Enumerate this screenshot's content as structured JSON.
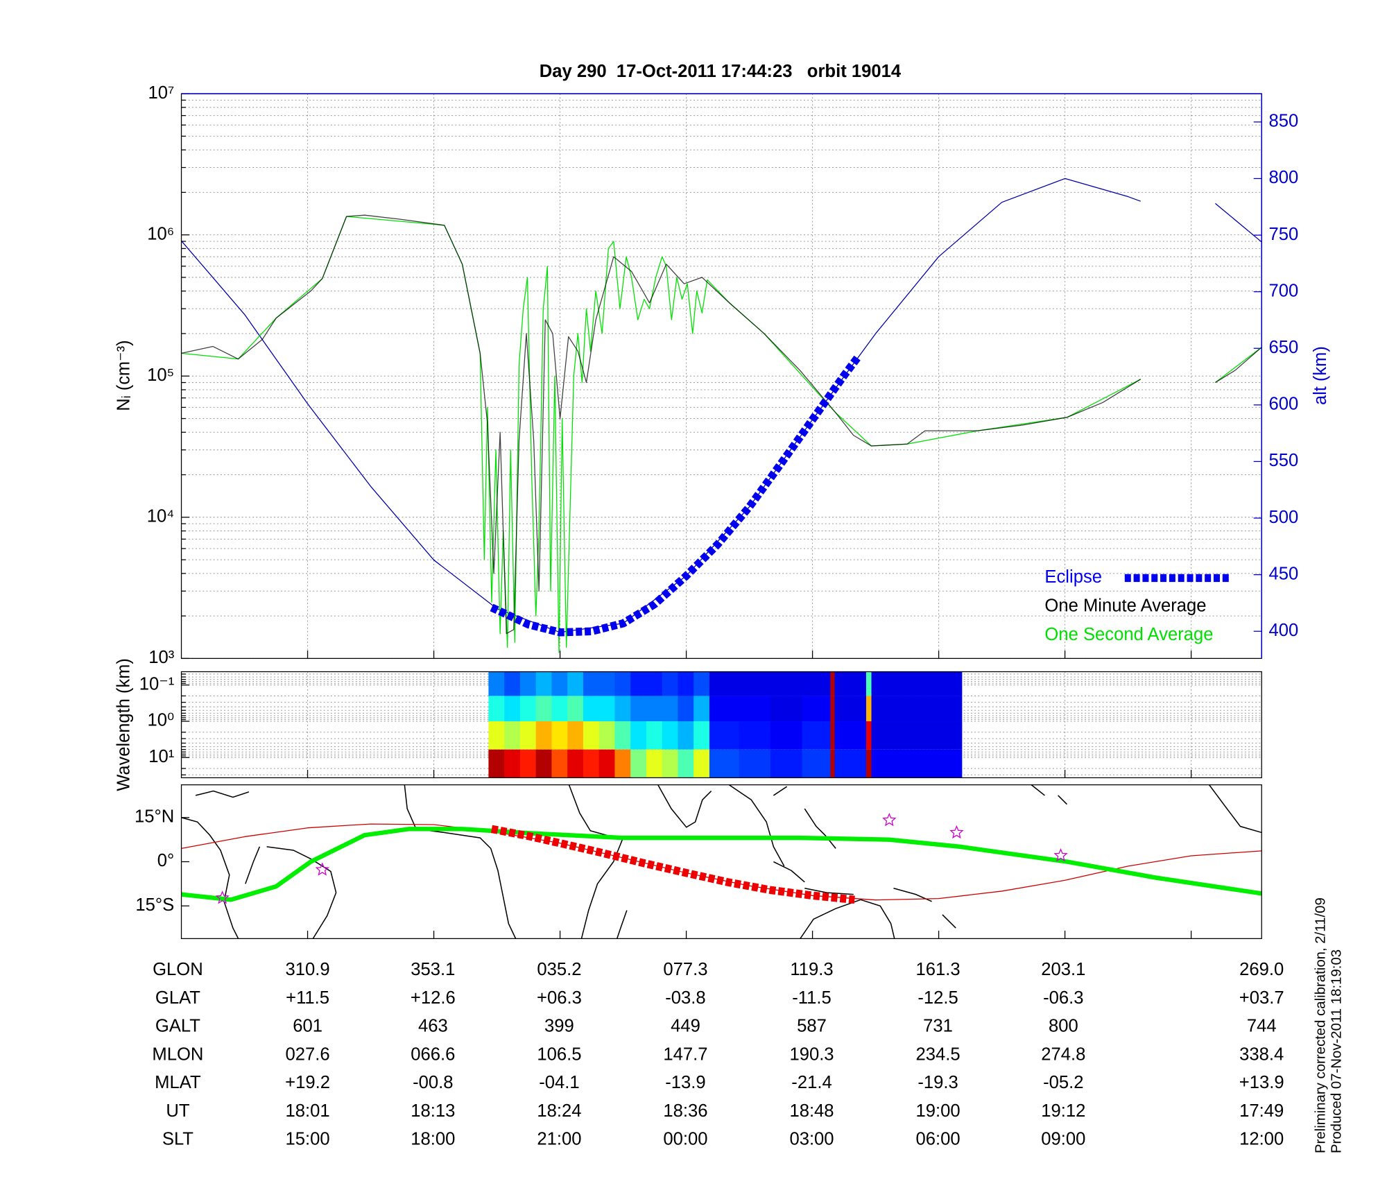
{
  "chart_data": [
    {
      "type": "line",
      "title": "Day 290  17-Oct-2011 17:44:23   orbit 19014",
      "ylabel": "Nᵢ (cm⁻³)",
      "y2label": "alt (km)",
      "xlim": [
        0,
        102.7
      ],
      "xticks": [
        12,
        24,
        36,
        48,
        60,
        72,
        84,
        96
      ],
      "ylim": [
        1000,
        10000000
      ],
      "log_y": true,
      "minor_grid": true,
      "grid": true,
      "yticks": [
        {
          "value": 1000,
          "label": "10³"
        },
        {
          "value": 10000,
          "label": "10⁴"
        },
        {
          "value": 100000,
          "label": "10⁵"
        },
        {
          "value": 1000000,
          "label": "10⁶"
        },
        {
          "value": 10000000,
          "label": "10⁷"
        }
      ],
      "y2lim": [
        376,
        875
      ],
      "y2ticks": [
        400,
        450,
        500,
        550,
        600,
        650,
        700,
        750,
        800,
        850
      ],
      "y2color": "#0000cc",
      "legend": "lower right",
      "series": [
        {
          "axis": "y2",
          "color": "#0000aa",
          "style": "solid",
          "x": [
            0,
            6,
            12,
            18,
            24,
            30,
            36,
            42,
            48,
            54,
            60,
            66,
            72,
            78,
            84,
            90,
            91.2,
            94.7,
            98.3,
            102.7
          ],
          "values": [
            745,
            680,
            601,
            528,
            463,
            420,
            399,
            407,
            449,
            510,
            587,
            663,
            731,
            779,
            800,
            784,
            780,
            null,
            778,
            744
          ]
        },
        {
          "name": "One Second Average",
          "color": "#00e000",
          "style": "solid",
          "x": [
            0,
            5.4,
            9,
            13.4,
            15.7,
            25,
            26.7,
            28.4,
            28.8,
            29.1,
            29.5,
            29.9,
            30.3,
            30.6,
            31,
            31.3,
            31.7,
            32.1,
            32.5,
            32.9,
            33.3,
            33.7,
            34,
            34.4,
            34.8,
            35.1,
            35.5,
            35.9,
            36.2,
            36.6,
            37,
            37.3,
            37.7,
            38.1,
            38.5,
            38.9,
            39.4,
            40,
            40.6,
            41.1,
            41.7,
            42.3,
            42.8,
            43.4,
            44,
            44.5,
            45.1,
            45.7,
            46.1,
            46.6,
            47.1,
            47.6,
            48.1,
            48.6,
            49,
            49.5,
            50,
            52.1,
            55.4,
            62.2,
            65.6,
            69,
            75.7,
            84.2,
            91.2,
            94.7,
            98.3,
            102.7
          ],
          "values": [
            145000,
            132000,
            257000,
            490000,
            1350000,
            1170000,
            620000,
            145000,
            5000,
            60000,
            2500,
            30000,
            1500,
            8000,
            1200,
            30000,
            1300,
            120000,
            300000,
            500000,
            20000,
            2000,
            8000,
            300000,
            600000,
            3000,
            100000,
            1100,
            50000,
            1200,
            15000,
            100000,
            200000,
            90000,
            300000,
            150000,
            400000,
            200000,
            800000,
            900000,
            300000,
            700000,
            500000,
            250000,
            350000,
            300000,
            500000,
            700000,
            600000,
            250000,
            500000,
            350000,
            450000,
            200000,
            400000,
            280000,
            480000,
            330000,
            200000,
            55000,
            32000,
            33000,
            41000,
            51000,
            95000,
            null,
            90000,
            160000
          ]
        },
        {
          "name": "One Minute Average",
          "color": "#000000",
          "style": "solid",
          "x": [
            0,
            3,
            5.4,
            7.7,
            9,
            12.3,
            13.4,
            15.7,
            17.4,
            20.8,
            25,
            26.7,
            28.4,
            29.1,
            29.7,
            30.3,
            30.9,
            31.6,
            32.1,
            32.8,
            33.5,
            34,
            34.6,
            35.3,
            36,
            36.8,
            37.7,
            38.5,
            39.4,
            41.1,
            42.8,
            44.5,
            46.1,
            47.8,
            49.5,
            52.1,
            55.4,
            58.8,
            62.2,
            63.9,
            65.6,
            69,
            70.7,
            75.7,
            80,
            84.2,
            87.6,
            91.2,
            94.7,
            98.3,
            100.2,
            102.7
          ],
          "values": [
            145000,
            162000,
            132000,
            182000,
            257000,
            400000,
            490000,
            1350000,
            1380000,
            1290000,
            1170000,
            620000,
            145000,
            46000,
            4000,
            40000,
            1500,
            1600,
            35000,
            200000,
            35000,
            3000,
            250000,
            200000,
            50000,
            190000,
            150000,
            90000,
            250000,
            700000,
            550000,
            330000,
            620000,
            450000,
            500000,
            330000,
            200000,
            110000,
            55000,
            38000,
            32000,
            33000,
            41000,
            41000,
            45000,
            51000,
            65000,
            95000,
            null,
            90000,
            110000,
            160000
          ]
        },
        {
          "name": "Eclipse",
          "axis": "y2",
          "color": "#0000ee",
          "style": "dashed",
          "x": [
            29.5,
            33,
            36,
            39,
            42,
            45,
            48,
            51,
            54,
            57,
            60,
            63,
            64.3
          ],
          "values": [
            421,
            406,
            399,
            400,
            407,
            424,
            449,
            477,
            510,
            548,
            587,
            626,
            642
          ]
        }
      ]
    },
    {
      "type": "heatmap",
      "ylabel": "Wavelength (km)",
      "colormap": "jet",
      "zlim": [
        0,
        1
      ],
      "xlim": [
        0,
        102.7
      ],
      "xticks": [
        12,
        24,
        36,
        48,
        60,
        72,
        84,
        96
      ],
      "grid": true,
      "minor_grid": true,
      "ylim": [
        36,
        0.043
      ],
      "log_y": true,
      "yticks": [
        {
          "value": 0.1,
          "label": "10⁻¹"
        },
        {
          "value": 1,
          "label": "10⁰"
        },
        {
          "value": 10,
          "label": "10¹"
        }
      ],
      "xbins": [
        29.2,
        30.7,
        32.2,
        33.7,
        35.2,
        36.7,
        38.2,
        39.7,
        41.2,
        42.7,
        44.2,
        45.7,
        47.2,
        48.7,
        50.2,
        53,
        56,
        59,
        61.7,
        62.1,
        65.1,
        65.6,
        68.5,
        71.5,
        74.2
      ],
      "ybins": [
        0.043,
        0.2,
        1,
        6,
        36
      ],
      "z": [
        [
          0.25,
          0.2,
          0.25,
          0.3,
          0.25,
          0.3,
          0.22,
          0.22,
          0.2,
          0.15,
          0.15,
          0.18,
          0.15,
          0.2,
          0.1,
          0.1,
          0.1,
          0.1,
          0.95,
          0.1,
          0.45,
          0.1,
          0.1,
          0.1
        ],
        [
          0.4,
          0.35,
          0.4,
          0.45,
          0.4,
          0.45,
          0.35,
          0.35,
          0.3,
          0.25,
          0.25,
          0.25,
          0.2,
          0.3,
          0.12,
          0.12,
          0.1,
          0.12,
          0.95,
          0.1,
          0.7,
          0.1,
          0.1,
          0.1
        ],
        [
          0.6,
          0.55,
          0.6,
          0.7,
          0.65,
          0.7,
          0.6,
          0.55,
          0.45,
          0.35,
          0.4,
          0.35,
          0.3,
          0.4,
          0.15,
          0.14,
          0.12,
          0.15,
          0.95,
          0.12,
          0.9,
          0.1,
          0.1,
          0.1
        ],
        [
          0.95,
          0.9,
          0.85,
          0.95,
          0.8,
          0.9,
          0.85,
          0.9,
          0.75,
          0.5,
          0.6,
          0.55,
          0.45,
          0.6,
          0.2,
          0.18,
          0.15,
          0.18,
          0.95,
          0.15,
          0.95,
          0.12,
          0.12,
          0.12
        ]
      ]
    },
    {
      "type": "line",
      "xlim": [
        0,
        102.7
      ],
      "xticks": [
        12,
        24,
        36,
        48,
        60,
        72,
        84,
        96
      ],
      "ylim": [
        -26.1,
        26.1
      ],
      "yticks": [
        {
          "value": -15,
          "label": "15°S"
        },
        {
          "value": 0,
          "label": "0°"
        },
        {
          "value": 15,
          "label": "15°N"
        }
      ],
      "series": [
        {
          "color": "#cc0000",
          "style": "thin",
          "x": [
            0,
            6,
            12,
            18,
            24,
            30,
            36,
            42,
            48,
            54,
            60,
            66,
            72,
            78,
            84,
            90,
            96,
            102.7
          ],
          "values": [
            4.5,
            8.5,
            11.5,
            12.8,
            12.6,
            10,
            6.3,
            1.3,
            -3.8,
            -8.2,
            -11.5,
            -13,
            -12.5,
            -10,
            -6.3,
            -1.5,
            2,
            3.7
          ]
        },
        {
          "color": "#00ee00",
          "style": "thick",
          "x": [
            0,
            4.7,
            9,
            12.3,
            17.4,
            21.6,
            26.7,
            33.5,
            41.9,
            50.4,
            58.8,
            67.3,
            74,
            84.2,
            92.6,
            102.7
          ],
          "values": [
            -11.1,
            -12.9,
            -8.4,
            0,
            9,
            11.1,
            11.1,
            9.6,
            8.1,
            8.1,
            8.1,
            7.5,
            5.1,
            0,
            -5.4,
            -10.8
          ]
        },
        {
          "color": "#ee0000",
          "style": "dashed",
          "x": [
            29.5,
            33,
            36,
            40,
            44,
            48,
            52,
            56,
            60,
            64
          ],
          "values": [
            11.1,
            8.7,
            6.3,
            3,
            -0.5,
            -3.8,
            -7,
            -9.6,
            -11.5,
            -12.9
          ]
        },
        {
          "type": "scatter",
          "marker": "star",
          "color": "#cc00cc",
          "x": [
            3.9,
            13.4,
            67.3,
            73.7,
            83.6
          ],
          "values": [
            -12.3,
            -2.7,
            14.1,
            9.9,
            2.1
          ]
        }
      ]
    }
  ],
  "table": {
    "rows": [
      [
        "GLON",
        "310.9",
        "353.1",
        "035.2",
        "077.3",
        "119.3",
        "161.3",
        "203.1",
        "269.0"
      ],
      [
        "GLAT",
        "+11.5",
        "+12.6",
        "+06.3",
        "-03.8",
        "-11.5",
        "-12.5",
        "-06.3",
        "+03.7"
      ],
      [
        "GALT",
        "601",
        "463",
        "399",
        "449",
        "587",
        "731",
        "800",
        "744"
      ],
      [
        "MLON",
        "027.6",
        "066.6",
        "106.5",
        "147.7",
        "190.3",
        "234.5",
        "274.8",
        "338.4"
      ],
      [
        "MLAT",
        "+19.2",
        "-00.8",
        "-04.1",
        "-13.9",
        "-21.4",
        "-19.3",
        "-05.2",
        "+13.9"
      ],
      [
        "UT",
        "18:01",
        "18:13",
        "18:24",
        "18:36",
        "18:48",
        "19:00",
        "19:12",
        "17:49"
      ],
      [
        "SLT",
        "15:00",
        "18:00",
        "21:00",
        "00:00",
        "03:00",
        "06:00",
        "09:00",
        "12:00"
      ]
    ]
  },
  "notes": [
    "Preliminary corrected calibration, 2/11/09",
    "Produced 07-Nov-2011 18:19:03"
  ]
}
